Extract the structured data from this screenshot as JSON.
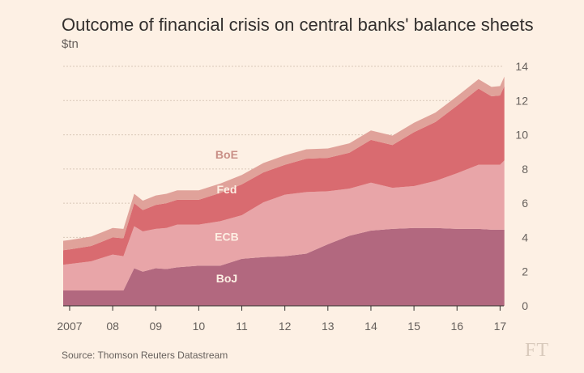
{
  "title": "Outcome of financial crisis on central banks' balance sheets",
  "subtitle": "$tn",
  "source": "Source: Thomson Reuters Datastream",
  "logo": "FT",
  "colors": {
    "background": "#fdf0e4",
    "BoJ": "#b2687f",
    "ECB": "#e8a5a8",
    "Fed": "#d96b70",
    "BoE": "#e0a29a",
    "grid": "#d9c8b8",
    "labelLight": "#fdf0e4",
    "labelBoE": "#c98f86"
  },
  "chart_data": {
    "type": "area",
    "stacked": true,
    "title": "Outcome of financial crisis on central banks' balance sheets",
    "ylabel": "$tn",
    "ylim": [
      0,
      14
    ],
    "yticks": [
      0,
      2,
      4,
      6,
      8,
      10,
      12,
      14
    ],
    "xlim": [
      2006.85,
      2017.2
    ],
    "xticks": [
      {
        "value": 2007,
        "label": "2007"
      },
      {
        "value": 2008,
        "label": "08"
      },
      {
        "value": 2009,
        "label": "09"
      },
      {
        "value": 2010,
        "label": "10"
      },
      {
        "value": 2011,
        "label": "11"
      },
      {
        "value": 2012,
        "label": "12"
      },
      {
        "value": 2013,
        "label": "13"
      },
      {
        "value": 2014,
        "label": "14"
      },
      {
        "value": 2015,
        "label": "15"
      },
      {
        "value": 2016,
        "label": "16"
      },
      {
        "value": 2017,
        "label": "17"
      }
    ],
    "x": [
      2006.85,
      2007.0,
      2007.5,
      2007.75,
      2008.0,
      2008.25,
      2008.5,
      2008.7,
      2009.0,
      2009.25,
      2009.5,
      2010.0,
      2010.5,
      2011.0,
      2011.5,
      2012.0,
      2012.5,
      2013.0,
      2013.5,
      2014.0,
      2014.5,
      2015.0,
      2015.5,
      2016.0,
      2016.5,
      2016.8,
      2017.0,
      2017.1
    ],
    "series": [
      {
        "name": "BoJ",
        "values": [
          0.9,
          0.9,
          0.9,
          0.9,
          0.9,
          0.9,
          2.2,
          2.0,
          2.2,
          2.15,
          2.25,
          2.35,
          2.35,
          2.75,
          2.85,
          2.9,
          3.05,
          3.6,
          4.1,
          4.4,
          4.5,
          4.55,
          4.55,
          4.5,
          4.5,
          4.45,
          4.45,
          4.45
        ]
      },
      {
        "name": "ECB",
        "values": [
          1.5,
          1.55,
          1.7,
          1.9,
          2.1,
          2.0,
          2.45,
          2.35,
          2.3,
          2.4,
          2.5,
          2.4,
          2.6,
          2.55,
          3.2,
          3.6,
          3.6,
          3.1,
          2.75,
          2.8,
          2.4,
          2.45,
          2.75,
          3.25,
          3.75,
          3.8,
          3.8,
          4.05
        ]
      },
      {
        "name": "Fed",
        "values": [
          0.85,
          0.85,
          0.9,
          0.95,
          1.0,
          1.05,
          1.35,
          1.25,
          1.4,
          1.45,
          1.45,
          1.45,
          1.65,
          1.8,
          1.75,
          1.75,
          1.95,
          1.95,
          2.1,
          2.5,
          2.5,
          3.15,
          3.45,
          3.95,
          4.45,
          4.0,
          4.05,
          4.35
        ]
      },
      {
        "name": "BoE",
        "values": [
          0.55,
          0.55,
          0.55,
          0.55,
          0.55,
          0.55,
          0.55,
          0.55,
          0.55,
          0.55,
          0.55,
          0.55,
          0.55,
          0.55,
          0.55,
          0.55,
          0.55,
          0.55,
          0.55,
          0.55,
          0.55,
          0.55,
          0.55,
          0.55,
          0.55,
          0.55,
          0.55,
          0.55
        ]
      }
    ],
    "series_labels": [
      {
        "name": "BoJ",
        "text": "BoJ",
        "x": 2010.65,
        "y": 1.6
      },
      {
        "name": "ECB",
        "text": "ECB",
        "x": 2010.65,
        "y": 4.05
      },
      {
        "name": "Fed",
        "text": "Fed",
        "x": 2010.65,
        "y": 6.8
      },
      {
        "name": "BoE",
        "text": "BoE",
        "x": 2010.65,
        "y": 8.85
      }
    ]
  }
}
